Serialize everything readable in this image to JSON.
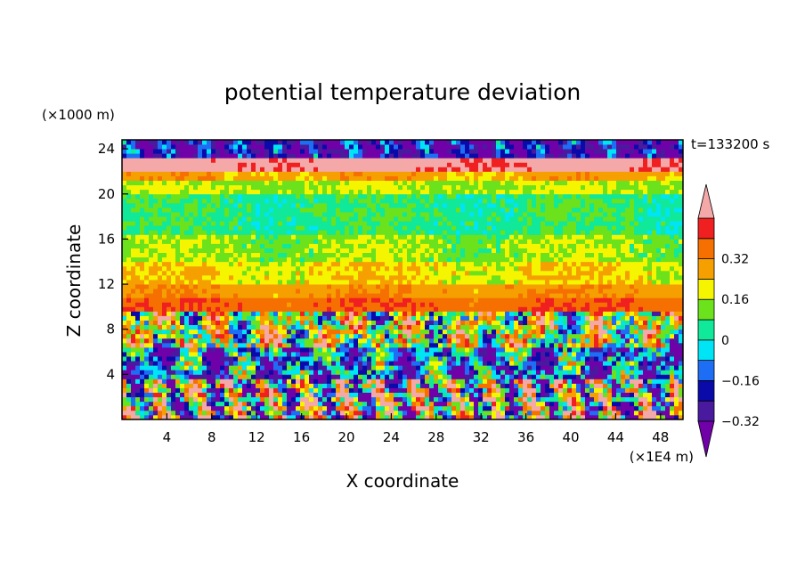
{
  "chart_data": {
    "type": "heatmap",
    "title": "potential temperature deviation",
    "xlabel": "X coordinate",
    "ylabel": "Z coordinate",
    "x_units": "(×1E4 m)",
    "y_units": "(×1000 m)",
    "time_label": "t=133200 s",
    "xlim": [
      0,
      50
    ],
    "ylim": [
      0,
      24.8
    ],
    "x_ticks": [
      4,
      8,
      12,
      16,
      20,
      24,
      28,
      32,
      36,
      40,
      44,
      48
    ],
    "y_ticks": [
      4,
      8,
      12,
      16,
      20,
      24
    ],
    "colorbar": {
      "levels": [
        -0.4,
        -0.32,
        -0.24,
        -0.16,
        -0.08,
        0,
        0.08,
        0.16,
        0.24,
        0.32,
        0.4
      ],
      "tick_labels": [
        {
          "value": -0.32,
          "label": "−0.32"
        },
        {
          "value": -0.16,
          "label": "−0.16"
        },
        {
          "value": 0,
          "label": "0"
        },
        {
          "value": 0.16,
          "label": "0.16"
        },
        {
          "value": 0.32,
          "label": "0.32"
        }
      ],
      "extend": "both",
      "colors": [
        "#7000A8",
        "#4A1A9E",
        "#0A0AAA",
        "#1E6EF5",
        "#00E5F5",
        "#10E89A",
        "#6BE21C",
        "#F5F500",
        "#F5A000",
        "#F57000",
        "#F02020",
        "#F5A8A8"
      ]
    },
    "bands": [
      {
        "zmin": 0,
        "zmax": 3.5,
        "value": 0.0,
        "noise": 0.8,
        "kind": "turbulent"
      },
      {
        "zmin": 3.5,
        "zmax": 6.5,
        "value": -0.2,
        "noise": 0.45,
        "kind": "plumes"
      },
      {
        "zmin": 6.5,
        "zmax": 9.5,
        "value": 0.05,
        "noise": 0.5,
        "kind": "plumes"
      },
      {
        "zmin": 9.5,
        "zmax": 10.8,
        "value": 0.3,
        "noise": 0.08,
        "kind": "layer"
      },
      {
        "zmin": 10.8,
        "zmax": 12.2,
        "value": 0.22,
        "noise": 0.08,
        "kind": "layer"
      },
      {
        "zmin": 12.2,
        "zmax": 14.2,
        "value": 0.14,
        "noise": 0.12,
        "kind": "layer"
      },
      {
        "zmin": 14.2,
        "zmax": 16.5,
        "value": 0.06,
        "noise": 0.12,
        "kind": "layer"
      },
      {
        "zmin": 16.5,
        "zmax": 20.2,
        "value": -0.02,
        "noise": 0.12,
        "kind": "layer"
      },
      {
        "zmin": 20.2,
        "zmax": 21.2,
        "value": 0.08,
        "noise": 0.1,
        "kind": "layer"
      },
      {
        "zmin": 21.2,
        "zmax": 22.2,
        "value": 0.2,
        "noise": 0.1,
        "kind": "layer"
      },
      {
        "zmin": 22.2,
        "zmax": 23.2,
        "value": 0.45,
        "noise": 0.15,
        "kind": "layer"
      },
      {
        "zmin": 23.2,
        "zmax": 24.8,
        "value": -0.35,
        "noise": 0.3,
        "kind": "turbulent"
      }
    ]
  }
}
